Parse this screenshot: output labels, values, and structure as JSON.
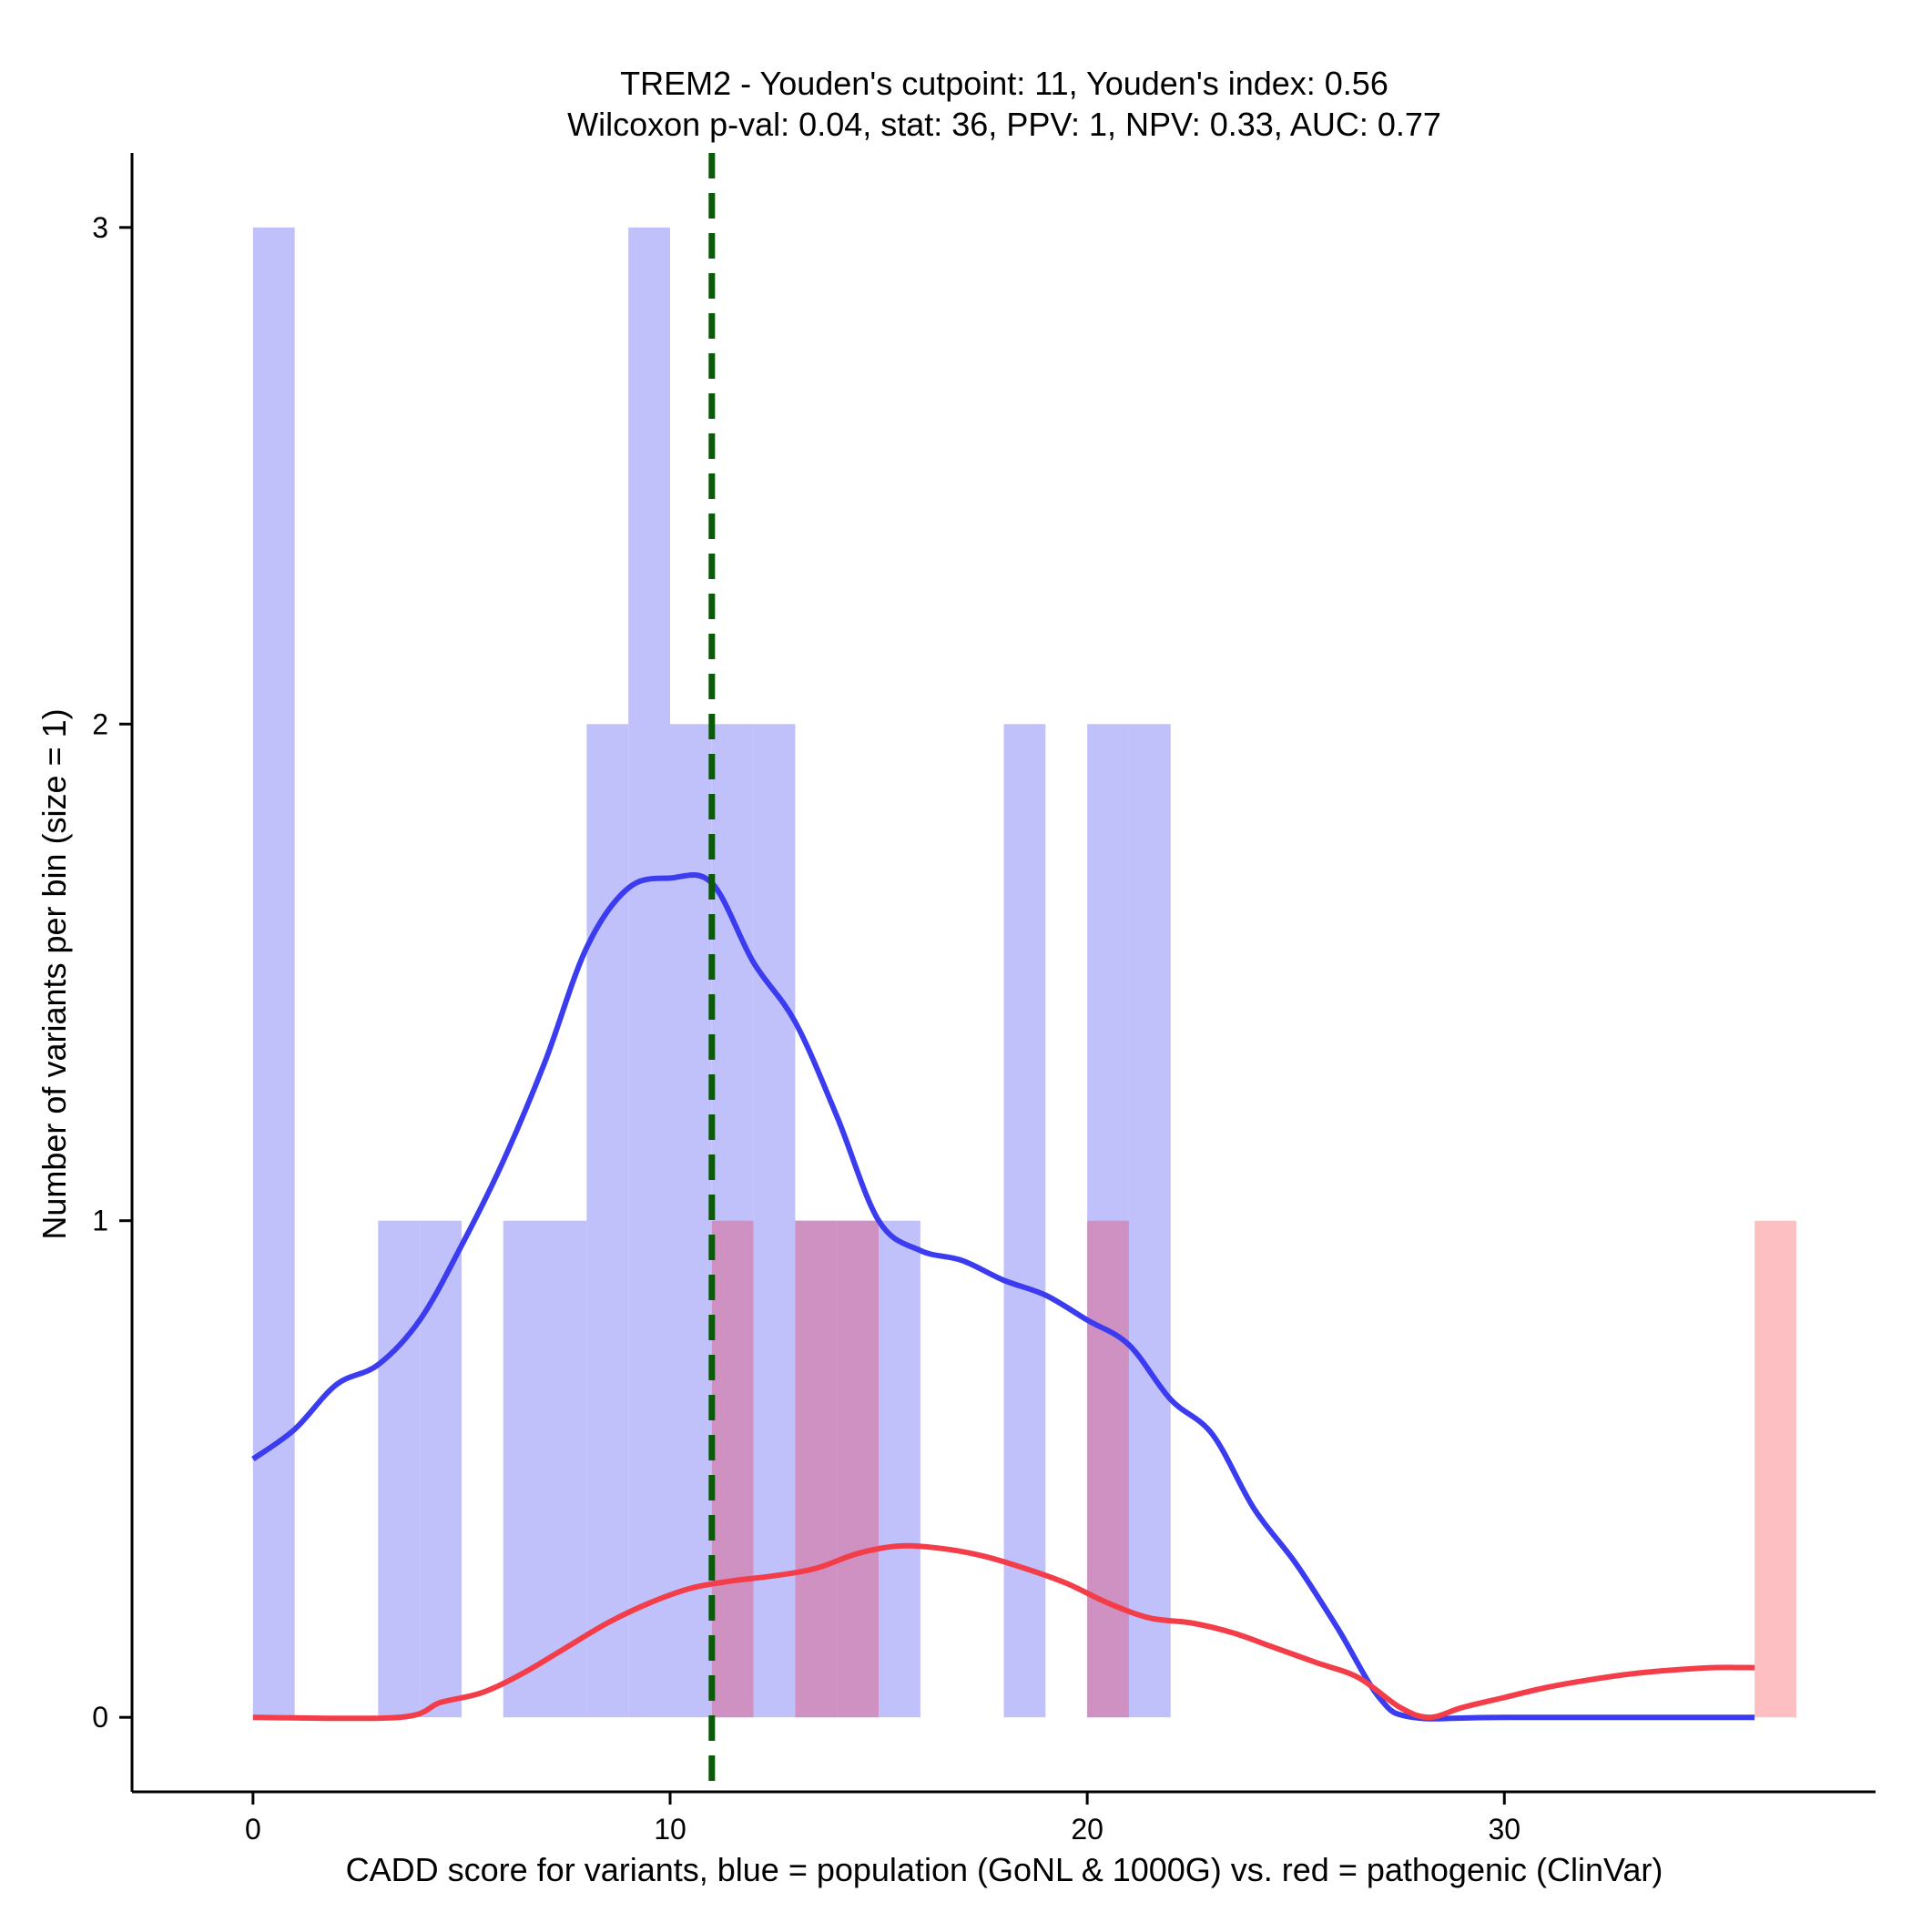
{
  "chart_data": {
    "type": "histogram",
    "title": {
      "line1": "TREM2 - Youden's cutpoint: 11, Youden's index: 0.56",
      "line2": "Wilcoxon p-val: 0.04, stat: 36, PPV: 1, NPV: 0.33, AUC: 0.77"
    },
    "xlabel": "CADD score for variants, blue = population (GoNL & 1000G) vs. red = pathogenic (ClinVar)",
    "ylabel": "Number of variants per bin (size = 1)",
    "xlim": [
      -2.9,
      38.9
    ],
    "ylim": [
      -0.15,
      3.15
    ],
    "x_ticks": [
      {
        "value": 0,
        "label": "0"
      },
      {
        "value": 10,
        "label": "10"
      },
      {
        "value": 20,
        "label": "20"
      },
      {
        "value": 30,
        "label": "30"
      }
    ],
    "y_ticks": [
      {
        "value": 0,
        "label": "0"
      },
      {
        "value": 1,
        "label": "1"
      },
      {
        "value": 2,
        "label": "2"
      },
      {
        "value": 3,
        "label": "3"
      }
    ],
    "bin_width": 1,
    "cutpoint": 11,
    "colors": {
      "population_bar": "#c0c0fb",
      "pathogenic_bar": "#fdbfc1",
      "overlap_bar": "#cf91c2",
      "population_density": "#3b3bf0",
      "pathogenic_density": "#f33e4a",
      "cutpoint_line": "#0a5a0a"
    },
    "series": [
      {
        "name": "population (GoNL & 1000G)",
        "bins": [
          {
            "x": 0,
            "count": 3
          },
          {
            "x": 3,
            "count": 1
          },
          {
            "x": 4,
            "count": 1
          },
          {
            "x": 6,
            "count": 1
          },
          {
            "x": 7,
            "count": 1
          },
          {
            "x": 8,
            "count": 2
          },
          {
            "x": 9,
            "count": 3
          },
          {
            "x": 10,
            "count": 2
          },
          {
            "x": 11,
            "count": 2
          },
          {
            "x": 12,
            "count": 2
          },
          {
            "x": 13,
            "count": 1
          },
          {
            "x": 14,
            "count": 1
          },
          {
            "x": 15,
            "count": 1
          },
          {
            "x": 18,
            "count": 2
          },
          {
            "x": 20,
            "count": 2
          },
          {
            "x": 21,
            "count": 2
          }
        ],
        "density": [
          [
            0,
            0.52
          ],
          [
            1,
            0.58
          ],
          [
            2,
            0.67
          ],
          [
            3,
            0.71
          ],
          [
            4,
            0.8
          ],
          [
            5,
            0.95
          ],
          [
            6,
            1.12
          ],
          [
            7,
            1.32
          ],
          [
            8,
            1.55
          ],
          [
            9,
            1.67
          ],
          [
            10,
            1.69
          ],
          [
            11,
            1.68
          ],
          [
            12,
            1.52
          ],
          [
            13,
            1.4
          ],
          [
            14,
            1.21
          ],
          [
            15,
            1.0
          ],
          [
            16,
            0.94
          ],
          [
            17,
            0.92
          ],
          [
            18,
            0.88
          ],
          [
            19,
            0.85
          ],
          [
            20,
            0.8
          ],
          [
            21,
            0.75
          ],
          [
            22,
            0.64
          ],
          [
            23,
            0.57
          ],
          [
            24,
            0.42
          ],
          [
            25,
            0.31
          ],
          [
            26,
            0.18
          ],
          [
            27,
            0.04
          ],
          [
            27.8,
            0.0
          ],
          [
            30,
            0.0
          ],
          [
            36,
            0.0
          ]
        ]
      },
      {
        "name": "pathogenic (ClinVar)",
        "bins": [
          {
            "x": 11,
            "count": 1
          },
          {
            "x": 13,
            "count": 1
          },
          {
            "x": 14,
            "count": 1
          },
          {
            "x": 20,
            "count": 1
          },
          {
            "x": 36,
            "count": 1
          }
        ],
        "density": [
          [
            0,
            0.0
          ],
          [
            3.5,
            0.0
          ],
          [
            4.5,
            0.03
          ],
          [
            5.5,
            0.05
          ],
          [
            6.5,
            0.09
          ],
          [
            7.5,
            0.14
          ],
          [
            8.5,
            0.19
          ],
          [
            9.5,
            0.23
          ],
          [
            10.5,
            0.26
          ],
          [
            11.5,
            0.275
          ],
          [
            12.5,
            0.285
          ],
          [
            13.5,
            0.3
          ],
          [
            14.5,
            0.33
          ],
          [
            15.5,
            0.345
          ],
          [
            16.5,
            0.34
          ],
          [
            17.5,
            0.325
          ],
          [
            18.5,
            0.3
          ],
          [
            19.5,
            0.27
          ],
          [
            20.5,
            0.23
          ],
          [
            21.5,
            0.2
          ],
          [
            22.5,
            0.19
          ],
          [
            23.5,
            0.17
          ],
          [
            24.5,
            0.14
          ],
          [
            25.5,
            0.11
          ],
          [
            26.5,
            0.08
          ],
          [
            27.5,
            0.02
          ],
          [
            28.2,
            0.0
          ],
          [
            29,
            0.02
          ],
          [
            30,
            0.04
          ],
          [
            31,
            0.06
          ],
          [
            32,
            0.075
          ],
          [
            33,
            0.087
          ],
          [
            34,
            0.095
          ],
          [
            35,
            0.1
          ],
          [
            36,
            0.1
          ]
        ]
      }
    ]
  }
}
